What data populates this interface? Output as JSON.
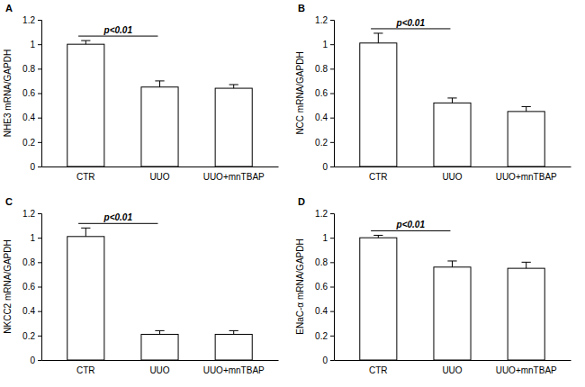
{
  "chart_data": [
    {
      "type": "bar",
      "title": "A",
      "y_label": "NHE3 mRNA/GAPDH",
      "categories": [
        "CTR",
        "UUO",
        "UUO+mnTBAP"
      ],
      "values": [
        1.0,
        0.65,
        0.64
      ],
      "errors": [
        0.03,
        0.05,
        0.03
      ],
      "color": "#ffffff",
      "ylim": [
        0,
        1.2
      ],
      "yticks": [
        0,
        0.2,
        0.4,
        0.6,
        0.8,
        1,
        1.2
      ],
      "grid": false,
      "annotations": [
        "p<0.01"
      ]
    },
    {
      "type": "bar",
      "title": "B",
      "y_label": "NCC mRNA/GAPDH",
      "categories": [
        "CTR",
        "UUO",
        "UUO+mnTBAP"
      ],
      "values": [
        1.01,
        0.52,
        0.45
      ],
      "errors": [
        0.08,
        0.04,
        0.04
      ],
      "color": "#ffffff",
      "ylim": [
        0,
        1.2
      ],
      "yticks": [
        0,
        0.2,
        0.4,
        0.6,
        0.8,
        1,
        1.2
      ],
      "grid": false,
      "annotations": [
        "p<0.01"
      ]
    },
    {
      "type": "bar",
      "title": "C",
      "y_label": "NKCC2 mRNA/GAPDH",
      "categories": [
        "CTR",
        "UUO",
        "UUO+mnTBAP"
      ],
      "values": [
        1.01,
        0.21,
        0.21
      ],
      "errors": [
        0.07,
        0.03,
        0.03
      ],
      "color": "#ffffff",
      "ylim": [
        0,
        1.2
      ],
      "yticks": [
        0,
        0.2,
        0.4,
        0.6,
        0.8,
        1,
        1.2
      ],
      "grid": false,
      "annotations": [
        "p<0.01"
      ]
    },
    {
      "type": "bar",
      "title": "D",
      "y_label": "ENaC-α mRNA/GAPDH",
      "categories": [
        "CTR",
        "UUO",
        "UUO+mnTBAP"
      ],
      "values": [
        1.0,
        0.76,
        0.75
      ],
      "errors": [
        0.02,
        0.05,
        0.05
      ],
      "color": "#ffffff",
      "ylim": [
        0,
        1.2
      ],
      "yticks": [
        0,
        0.2,
        0.4,
        0.6,
        0.8,
        1,
        1.2
      ],
      "grid": false,
      "annotations": [
        "p<0.01"
      ]
    }
  ]
}
